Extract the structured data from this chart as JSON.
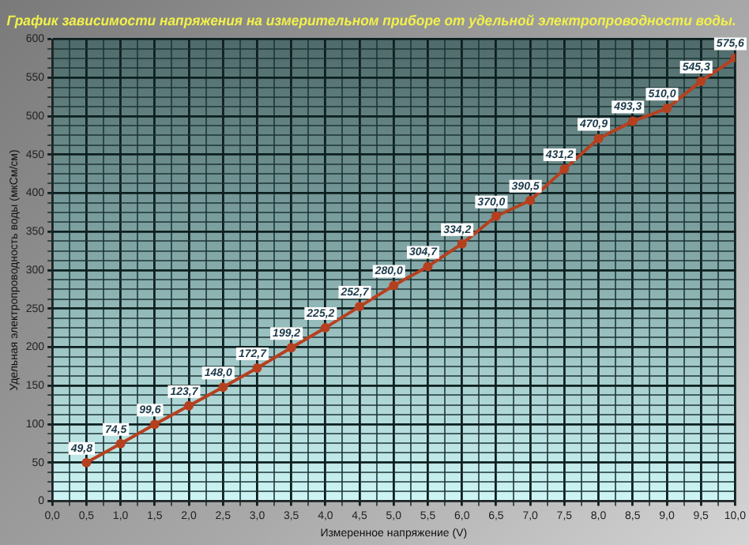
{
  "chart_data": {
    "type": "line",
    "title": "График зависимости напряжения на измерительном приборе от удельной электропроводности воды.",
    "xlabel": "Измеренное напряжение (V)",
    "ylabel": "Удельная электропроводность воды (мкСм/см)",
    "x": [
      0.5,
      1,
      1.5,
      2,
      2.5,
      3,
      3.5,
      4,
      4.5,
      5,
      5.5,
      6,
      6.5,
      7,
      7.5,
      8,
      8.5,
      9,
      9.5,
      10
    ],
    "series": [
      {
        "color": "#b5401f",
        "values": [
          49.8,
          74.5,
          99.6,
          123.7,
          148.0,
          172.7,
          199.2,
          225.2,
          252.7,
          280.0,
          304.7,
          334.2,
          370.0,
          390.5,
          431.2,
          470.9,
          493.3,
          510.0,
          545.3,
          575.6
        ],
        "value_labels": [
          "49,8",
          "74,5",
          "99,6",
          "123,7",
          "148,0",
          "172,7",
          "199,2",
          "225,2",
          "252,7",
          "280,0",
          "304,7",
          "334,2",
          "370,0",
          "390,5",
          "431,2",
          "470,9",
          "493,3",
          "510,0",
          "545,3",
          "575,6"
        ]
      }
    ],
    "xlim": [
      0,
      10
    ],
    "xticks": [
      {
        "value": 0,
        "label": "0,0"
      },
      {
        "value": 0.25,
        "label": null
      },
      {
        "value": 0.5,
        "label": "0,5"
      },
      {
        "value": 0.75,
        "label": null
      },
      {
        "value": 1,
        "label": "1,0"
      },
      {
        "value": 1.25,
        "label": null
      },
      {
        "value": 1.5,
        "label": "1,5"
      },
      {
        "value": 1.75,
        "label": null
      },
      {
        "value": 2,
        "label": "2,0"
      },
      {
        "value": 2.25,
        "label": null
      },
      {
        "value": 2.5,
        "label": "2,5"
      },
      {
        "value": 2.75,
        "label": null
      },
      {
        "value": 3,
        "label": "3,0"
      },
      {
        "value": 3.25,
        "label": null
      },
      {
        "value": 3.5,
        "label": "3,5"
      },
      {
        "value": 3.75,
        "label": null
      },
      {
        "value": 4,
        "label": "4,0"
      },
      {
        "value": 4.25,
        "label": null
      },
      {
        "value": 4.5,
        "label": "4,5"
      },
      {
        "value": 4.75,
        "label": null
      },
      {
        "value": 5,
        "label": "5,0"
      },
      {
        "value": 5.25,
        "label": null
      },
      {
        "value": 5.5,
        "label": "5,5"
      },
      {
        "value": 5.75,
        "label": null
      },
      {
        "value": 6,
        "label": "6,0"
      },
      {
        "value": 6.25,
        "label": null
      },
      {
        "value": 6.5,
        "label": "6,5"
      },
      {
        "value": 6.75,
        "label": null
      },
      {
        "value": 7,
        "label": "7,0"
      },
      {
        "value": 7.25,
        "label": null
      },
      {
        "value": 7.5,
        "label": "7,5"
      },
      {
        "value": 7.75,
        "label": null
      },
      {
        "value": 8,
        "label": "8,0"
      },
      {
        "value": 8.25,
        "label": null
      },
      {
        "value": 8.5,
        "label": "8,5"
      },
      {
        "value": 8.75,
        "label": null
      },
      {
        "value": 9,
        "label": "9,0"
      },
      {
        "value": 9.25,
        "label": null
      },
      {
        "value": 9.5,
        "label": "9,5"
      },
      {
        "value": 9.75,
        "label": null
      },
      {
        "value": 10,
        "label": "10,0"
      }
    ],
    "ylim": [
      0,
      600
    ],
    "yticks": [
      0,
      {
        "value": 12.5,
        "label": null
      },
      {
        "value": 25,
        "label": null
      },
      {
        "value": 37.5,
        "label": null
      },
      50,
      {
        "value": 62.5,
        "label": null
      },
      {
        "value": 75,
        "label": null
      },
      {
        "value": 87.5,
        "label": null
      },
      100,
      {
        "value": 112.5,
        "label": null
      },
      {
        "value": 125,
        "label": null
      },
      {
        "value": 137.5,
        "label": null
      },
      150,
      {
        "value": 162.5,
        "label": null
      },
      {
        "value": 175,
        "label": null
      },
      {
        "value": 187.5,
        "label": null
      },
      200,
      {
        "value": 212.5,
        "label": null
      },
      {
        "value": 225,
        "label": null
      },
      {
        "value": 237.5,
        "label": null
      },
      250,
      {
        "value": 262.5,
        "label": null
      },
      {
        "value": 275,
        "label": null
      },
      {
        "value": 287.5,
        "label": null
      },
      300,
      {
        "value": 312.5,
        "label": null
      },
      {
        "value": 325,
        "label": null
      },
      {
        "value": 337.5,
        "label": null
      },
      350,
      {
        "value": 362.5,
        "label": null
      },
      {
        "value": 375,
        "label": null
      },
      {
        "value": 387.5,
        "label": null
      },
      400,
      {
        "value": 412.5,
        "label": null
      },
      {
        "value": 425,
        "label": null
      },
      {
        "value": 437.5,
        "label": null
      },
      450,
      {
        "value": 462.5,
        "label": null
      },
      {
        "value": 475,
        "label": null
      },
      {
        "value": 487.5,
        "label": null
      },
      500,
      {
        "value": 512.5,
        "label": null
      },
      {
        "value": 525,
        "label": null
      },
      {
        "value": 537.5,
        "label": null
      },
      550,
      {
        "value": 562.5,
        "label": null
      },
      {
        "value": 575,
        "label": null
      },
      {
        "value": 587.5,
        "label": null
      },
      600
    ],
    "grid": true,
    "legend": false,
    "marker": "circle",
    "line_style": "solid"
  }
}
